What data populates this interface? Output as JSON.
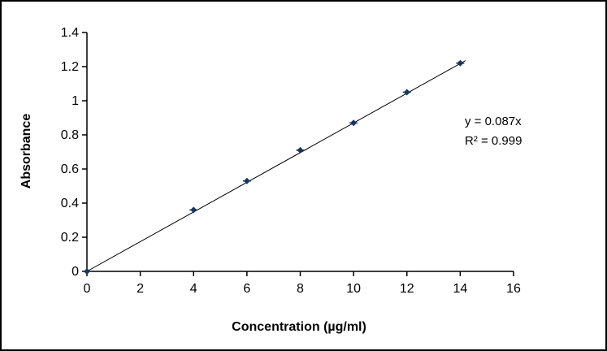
{
  "chart_data": {
    "type": "scatter",
    "title": "",
    "xlabel": "Concentration (µg/ml)",
    "ylabel": "Absorbance",
    "x": [
      0,
      4,
      6,
      8,
      10,
      12,
      14
    ],
    "y": [
      0,
      0.36,
      0.53,
      0.71,
      0.87,
      1.05,
      1.22
    ],
    "xlim": [
      0,
      16
    ],
    "ylim": [
      0,
      1.4
    ],
    "xticks": [
      0,
      2,
      4,
      6,
      8,
      10,
      12,
      14,
      16
    ],
    "yticks": [
      0,
      0.2,
      0.4,
      0.6,
      0.8,
      1,
      1.2,
      1.4
    ],
    "grid": false,
    "legend": "none",
    "marker": "diamond",
    "marker_color": "#17375E",
    "line_color": "#000000",
    "trendline": {
      "slope": 0.087,
      "intercept": 0,
      "x_start": 0,
      "x_end": 14.2,
      "equation": "y = 0.087x",
      "r_squared": "R² = 0.999"
    }
  }
}
